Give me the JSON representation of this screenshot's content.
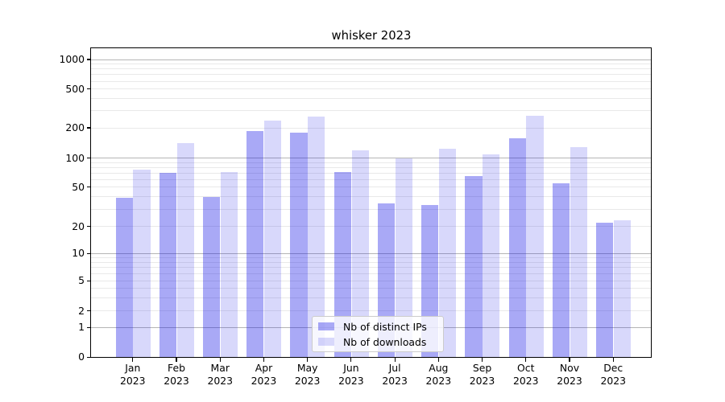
{
  "figure": {
    "title": "whisker 2023"
  },
  "colors": {
    "bar_distinct_ips": "rgba(10,10,230,0.35)",
    "bar_downloads": "rgba(10,10,230,0.16)",
    "grid_major": "#b5b5b5",
    "grid_minor": "#e9e9e9",
    "axis": "#000000",
    "legend_border": "#cccccc",
    "background": "#ffffff"
  },
  "legend": {
    "items": [
      {
        "label": "Nb of distinct IPs",
        "series": "distinct_ips"
      },
      {
        "label": "Nb of downloads",
        "series": "downloads"
      }
    ]
  },
  "chart_data": {
    "type": "bar",
    "title": "whisker 2023",
    "xlabel": "",
    "ylabel": "",
    "yscale": "symlog",
    "grid": "on",
    "legend_position": "lower center",
    "months": [
      "Jan",
      "Feb",
      "Mar",
      "Apr",
      "May",
      "Jun",
      "Jul",
      "Aug",
      "Sep",
      "Oct",
      "Nov",
      "Dec"
    ],
    "year": "2023",
    "categories": [
      "Jan 2023",
      "Feb 2023",
      "Mar 2023",
      "Apr 2023",
      "May 2023",
      "Jun 2023",
      "Jul 2023",
      "Aug 2023",
      "Sep 2023",
      "Oct 2023",
      "Nov 2023",
      "Dec 2023"
    ],
    "series": [
      {
        "name": "Nb of distinct IPs",
        "values": [
          39,
          70,
          40,
          185,
          180,
          72,
          34,
          33,
          65,
          158,
          55,
          22
        ]
      },
      {
        "name": "Nb of downloads",
        "values": [
          76,
          140,
          71,
          235,
          260,
          120,
          100,
          125,
          110,
          265,
          128,
          23
        ]
      }
    ],
    "y_tick_values": [
      0,
      1,
      2,
      5,
      10,
      20,
      50,
      100,
      200,
      500,
      1000
    ],
    "y_tick_labels": [
      "0",
      "1",
      "2",
      "5",
      "10",
      "20",
      "50",
      "100",
      "200",
      "500",
      "1000"
    ],
    "ylim": [
      0,
      1300
    ]
  }
}
